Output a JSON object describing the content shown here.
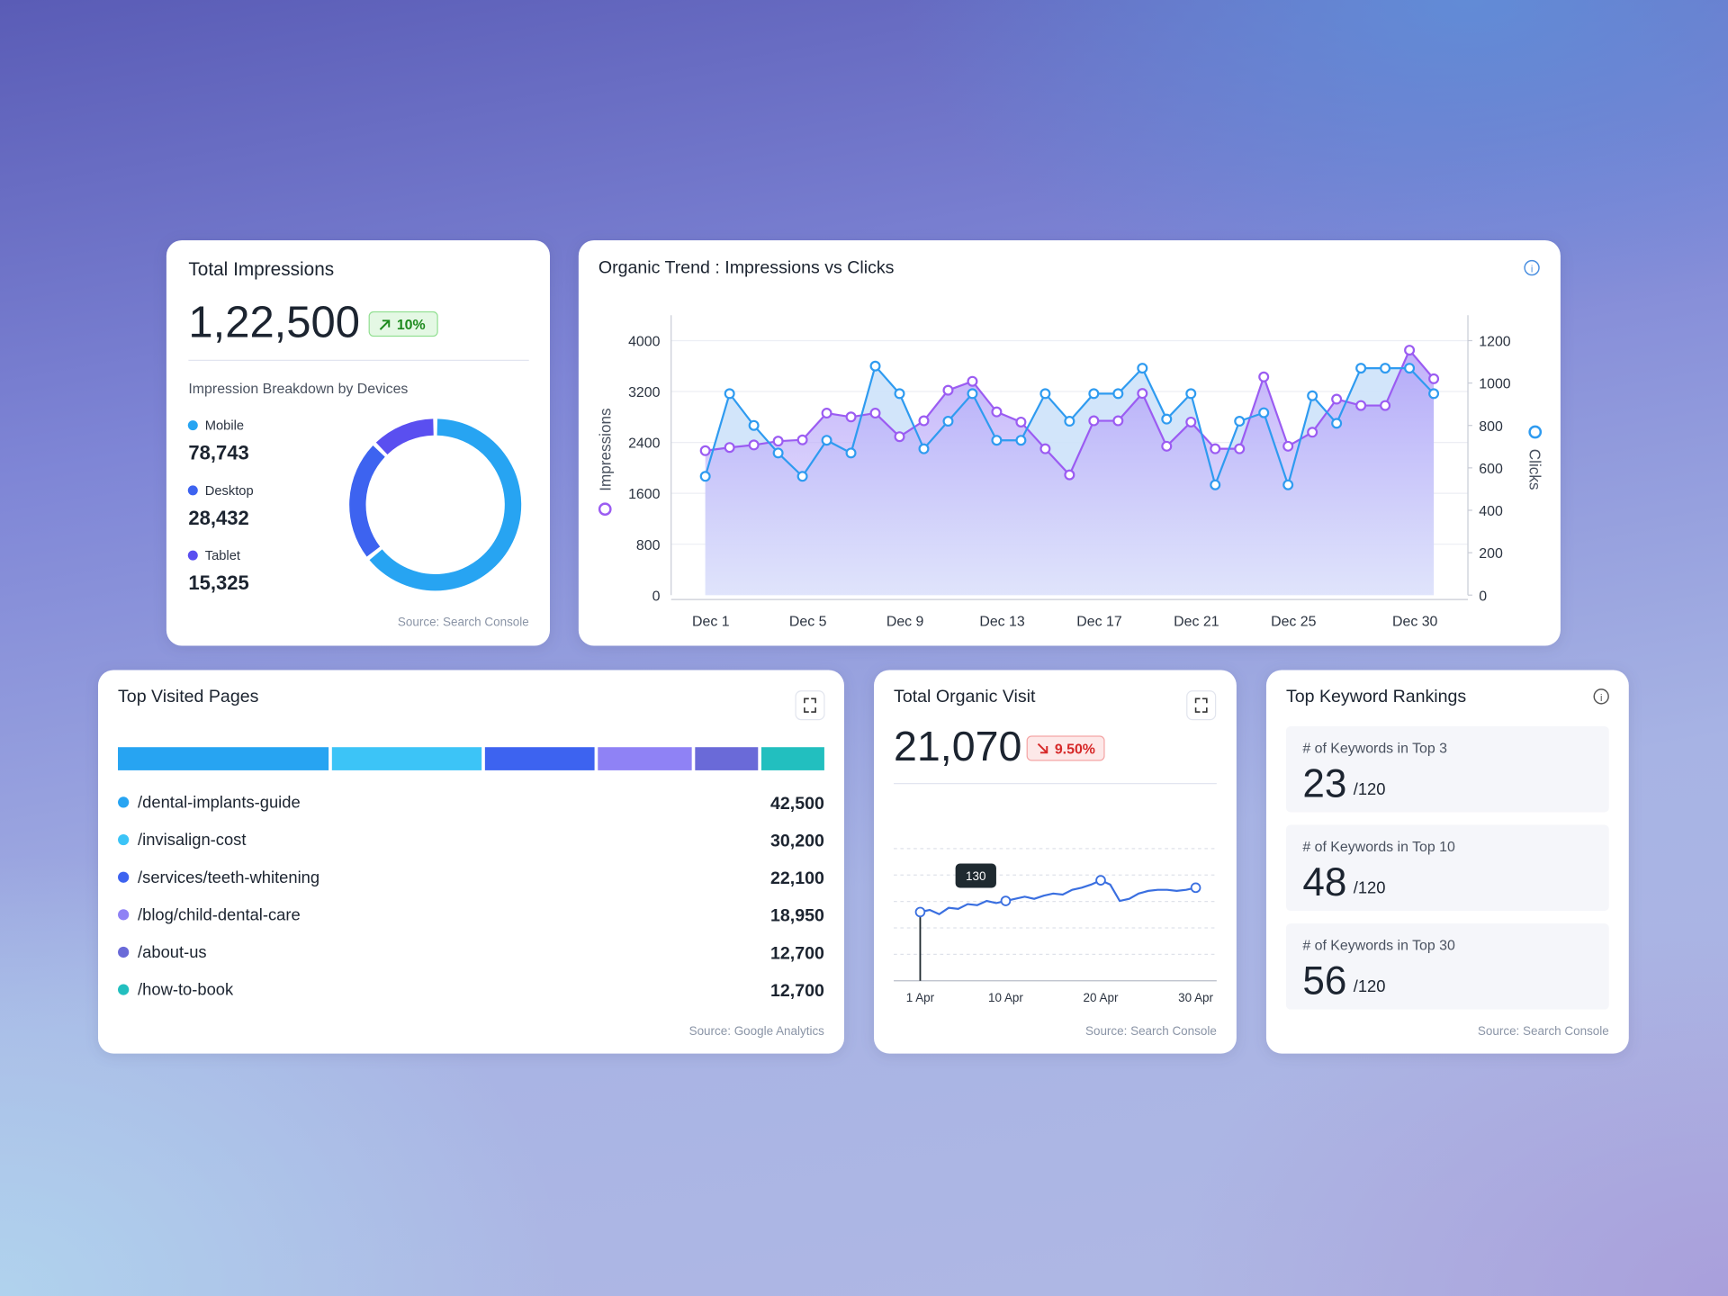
{
  "impressions_card": {
    "title": "Total Impressions",
    "total": "1,22,500",
    "change": "10%",
    "subtitle": "Impression Breakdown by Devices",
    "source": "Source: Search Console",
    "chart": {
      "type": "donut",
      "categories": [
        "Mobile",
        "Desktop",
        "Tablet"
      ],
      "values": [
        78743,
        28432,
        15325
      ],
      "value_labels": [
        "78,743",
        "28,432",
        "15,325"
      ],
      "colors": [
        "#27a4f2",
        "#3d63f0",
        "#5a4ff0"
      ]
    }
  },
  "trend_card": {
    "chart": {
      "type": "line",
      "title": "Organic Trend : Impressions vs Clicks",
      "categories": [
        "Dec 1",
        null,
        null,
        null,
        "Dec 5",
        null,
        null,
        null,
        "Dec 9",
        null,
        null,
        null,
        "Dec 13",
        null,
        null,
        null,
        "Dec 17",
        null,
        null,
        null,
        "Dec 21",
        null,
        null,
        null,
        "Dec 25",
        null,
        null,
        null,
        null,
        "Dec 30",
        null
      ],
      "series": [
        {
          "name": "Impressions",
          "color": "#9b5cf2",
          "values": [
            2270,
            2320,
            2360,
            2420,
            2440,
            2860,
            2800,
            2860,
            2490,
            2740,
            3220,
            3360,
            2880,
            2720,
            2300,
            1890,
            2740,
            2740,
            3170,
            2340,
            2720,
            2300,
            2300,
            3430,
            2340,
            2560,
            3080,
            2980,
            2980,
            3850,
            3400
          ]
        },
        {
          "name": "Clicks",
          "color": "#2f9bf0",
          "axis": "y2",
          "values": [
            560,
            950,
            800,
            670,
            560,
            730,
            670,
            1080,
            950,
            690,
            820,
            950,
            730,
            730,
            950,
            820,
            950,
            950,
            1070,
            830,
            950,
            520,
            820,
            860,
            520,
            940,
            810,
            1070,
            1070,
            1070,
            950
          ]
        }
      ],
      "ylim": [
        0,
        4400
      ],
      "yticks": [
        0,
        800,
        1600,
        2400,
        3200,
        4000
      ],
      "y2lim": [
        0,
        1320
      ],
      "y2ticks": [
        0,
        200,
        400,
        600,
        800,
        1000,
        1200
      ],
      "grid": true
    }
  },
  "pages_card": {
    "title": "Top Visited Pages",
    "source": "Source: Google Analytics",
    "chart": {
      "type": "stacked-bar",
      "categories": [
        "/dental-implants-guide",
        "/invisalign-cost",
        "/services/teeth-whitening",
        "/blog/child-dental-care",
        "/about-us",
        "/how-to-book"
      ],
      "values": [
        42500,
        30200,
        22100,
        18950,
        12700,
        12700
      ],
      "value_labels": [
        "42,500",
        "30,200",
        "22,100",
        "18,950",
        "12,700",
        "12,700"
      ],
      "colors": [
        "#27a4f2",
        "#3cc4f7",
        "#3d63f0",
        "#8f82f5",
        "#6a6ad8",
        "#22bfbf"
      ]
    }
  },
  "visit_card": {
    "title": "Total Organic Visit",
    "total": "21,070",
    "change": "9.50%",
    "source": "Source: Search Console",
    "chart": {
      "type": "line",
      "categories": [
        "1 Apr",
        null,
        null,
        null,
        null,
        null,
        null,
        null,
        null,
        "10 Apr",
        null,
        null,
        null,
        null,
        null,
        null,
        null,
        null,
        null,
        "20 Apr",
        null,
        null,
        null,
        null,
        null,
        null,
        null,
        null,
        null,
        "30 Apr"
      ],
      "values": [
        130,
        134,
        126,
        138,
        136,
        145,
        143,
        151,
        147,
        151,
        155,
        159,
        155,
        161,
        165,
        163,
        172,
        176,
        182,
        190,
        182,
        151,
        155,
        165,
        170,
        172,
        172,
        170,
        172,
        176
      ],
      "color": "#3a6fe0",
      "ylim": [
        0,
        250
      ],
      "yticks": [
        0,
        50,
        100,
        150,
        200,
        250
      ],
      "grid": true
    }
  },
  "keyword_card": {
    "title": "Top Keyword Rankings",
    "source": "Source: Search Console",
    "items": [
      {
        "label": "# of Keywords in Top 3",
        "value": 23,
        "total": "/120"
      },
      {
        "label": "# of Keywords in Top 10",
        "value": 48,
        "total": "/120"
      },
      {
        "label": "# of Keywords in Top 30",
        "value": 56,
        "total": "/120"
      }
    ]
  }
}
